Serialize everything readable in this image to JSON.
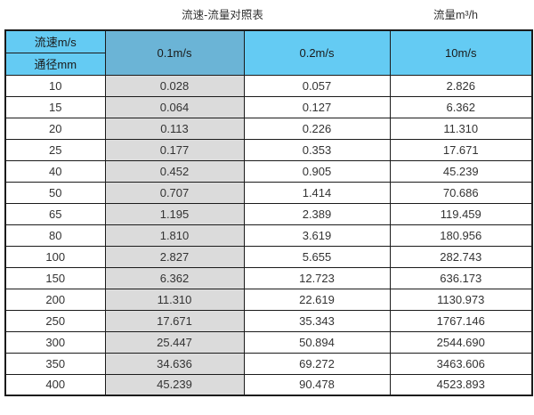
{
  "page": {
    "title_left": "流速-流量对照表",
    "title_right": "流量m³/h"
  },
  "table": {
    "corner_top": "流速m/s",
    "corner_bottom": "通径mm",
    "velocity_columns": [
      "0.1m/s",
      "0.2m/s",
      "10m/s"
    ],
    "rows": [
      {
        "diameter": "10",
        "values": [
          "0.028",
          "0.057",
          "2.826"
        ]
      },
      {
        "diameter": "15",
        "values": [
          "0.064",
          "0.127",
          "6.362"
        ]
      },
      {
        "diameter": "20",
        "values": [
          "0.113",
          "0.226",
          "11.310"
        ]
      },
      {
        "diameter": "25",
        "values": [
          "0.177",
          "0.353",
          "17.671"
        ]
      },
      {
        "diameter": "40",
        "values": [
          "0.452",
          "0.905",
          "45.239"
        ]
      },
      {
        "diameter": "50",
        "values": [
          "0.707",
          "1.414",
          "70.686"
        ]
      },
      {
        "diameter": "65",
        "values": [
          "1.195",
          "2.389",
          "119.459"
        ]
      },
      {
        "diameter": "80",
        "values": [
          "1.810",
          "3.619",
          "180.956"
        ]
      },
      {
        "diameter": "100",
        "values": [
          "2.827",
          "5.655",
          "282.743"
        ]
      },
      {
        "diameter": "150",
        "values": [
          "6.362",
          "12.723",
          "636.173"
        ]
      },
      {
        "diameter": "200",
        "values": [
          "11.310",
          "22.619",
          "1130.973"
        ]
      },
      {
        "diameter": "250",
        "values": [
          "17.671",
          "35.343",
          "1767.146"
        ]
      },
      {
        "diameter": "300",
        "values": [
          "25.447",
          "50.894",
          "2544.690"
        ]
      },
      {
        "diameter": "350",
        "values": [
          "34.636",
          "69.272",
          "3463.606"
        ]
      },
      {
        "diameter": "400",
        "values": [
          "45.239",
          "90.478",
          "4523.893"
        ]
      }
    ]
  },
  "colors": {
    "header_blue": "#64CBF3",
    "header_blue_dark": "#6BB4D6",
    "column_gray": "#DBDBDB",
    "border": "#1b1b1b",
    "text": "#333333"
  },
  "chart_data": {
    "type": "table",
    "title": "流速-流量对照表",
    "unit_label": "流量m³/h",
    "columns": [
      "通径mm",
      "0.1m/s",
      "0.2m/s",
      "10m/s"
    ],
    "rows": [
      [
        10,
        0.028,
        0.057,
        2.826
      ],
      [
        15,
        0.064,
        0.127,
        6.362
      ],
      [
        20,
        0.113,
        0.226,
        11.31
      ],
      [
        25,
        0.177,
        0.353,
        17.671
      ],
      [
        40,
        0.452,
        0.905,
        45.239
      ],
      [
        50,
        0.707,
        1.414,
        70.686
      ],
      [
        65,
        1.195,
        2.389,
        119.459
      ],
      [
        80,
        1.81,
        3.619,
        180.956
      ],
      [
        100,
        2.827,
        5.655,
        282.743
      ],
      [
        150,
        6.362,
        12.723,
        636.173
      ],
      [
        200,
        11.31,
        22.619,
        1130.973
      ],
      [
        250,
        17.671,
        35.343,
        1767.146
      ],
      [
        300,
        25.447,
        50.894,
        2544.69
      ],
      [
        350,
        34.636,
        69.272,
        3463.606
      ],
      [
        400,
        45.239,
        90.478,
        4523.893
      ]
    ]
  }
}
